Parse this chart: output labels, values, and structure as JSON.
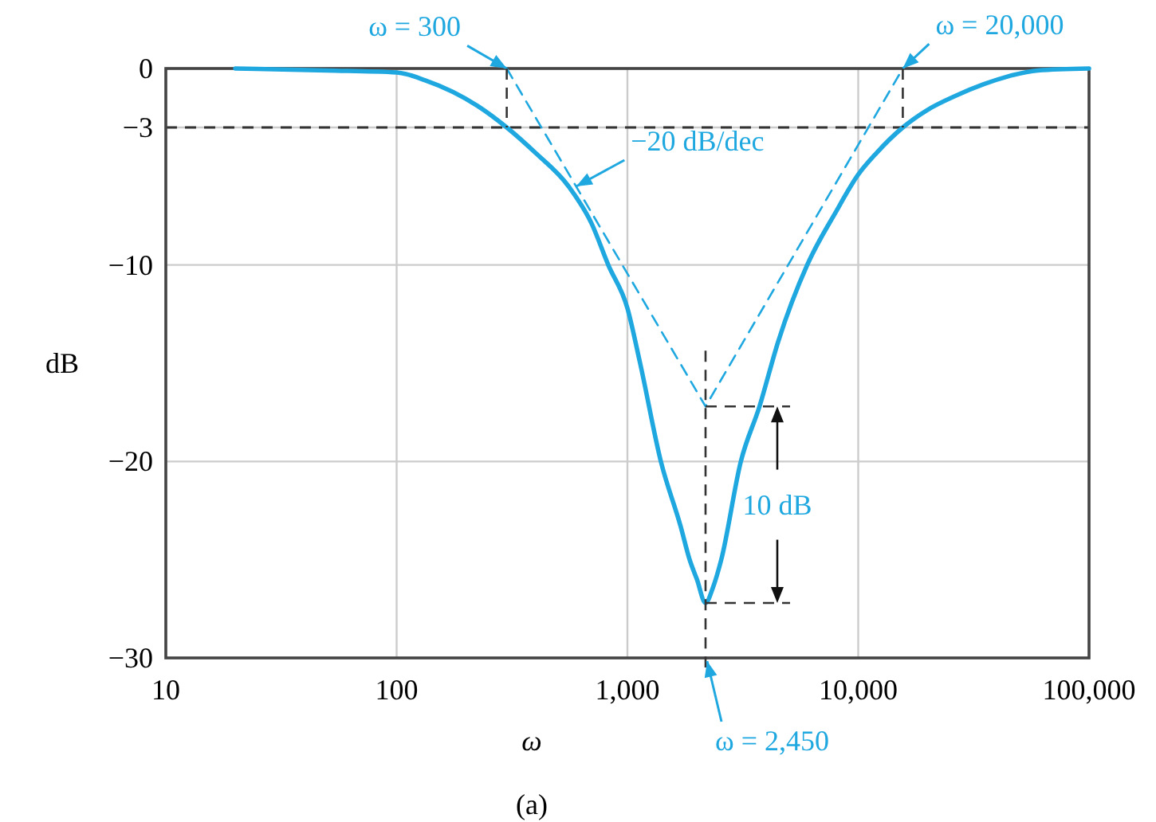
{
  "chart_data": {
    "type": "line",
    "xlabel": "ω",
    "ylabel": "dB",
    "log": "x",
    "grid": true,
    "xlim": [
      10,
      100000
    ],
    "ylim": [
      -30,
      0
    ],
    "xticks": [
      {
        "value": 10,
        "label": "10"
      },
      {
        "value": 100,
        "label": "100"
      },
      {
        "value": 1000,
        "label": "1,000"
      },
      {
        "value": 10000,
        "label": "10,000"
      },
      {
        "value": 100000,
        "label": "100,000"
      }
    ],
    "yticks": [
      0,
      -3,
      -10,
      -20,
      -30
    ],
    "ref_lines": [
      {
        "axis": "y",
        "value": -3,
        "color": "#333333",
        "line_style": "dashed"
      }
    ],
    "series": [
      {
        "color": "#1fa8e0",
        "line_style": "solid",
        "x": [
          20,
          50,
          100,
          133,
          224,
          300,
          400,
          556,
          700,
          826,
          1000,
          1135,
          1396,
          1700,
          1860,
          2000,
          2180,
          2350,
          2550,
          3100,
          3735,
          4500,
          6010,
          8000,
          10000,
          12000,
          15600,
          20000,
          26300,
          35000,
          44600,
          60000,
          100000
        ],
        "values": [
          0,
          -0.1,
          -0.2,
          -0.6,
          -1.9,
          -3,
          -4.3,
          -6,
          -7.9,
          -10,
          -12.2,
          -15,
          -20,
          -23.3,
          -25,
          -26,
          -27.2,
          -26.4,
          -25,
          -20,
          -17.2,
          -13.9,
          -10,
          -7.3,
          -5.4,
          -4.3,
          -3,
          -2.1,
          -1.4,
          -0.8,
          -0.4,
          -0.1,
          0
        ]
      },
      {
        "color": "#1fa8e0",
        "line_style": "dashed",
        "x": [
          300,
          2180,
          15600
        ],
        "values": [
          0,
          -17.2,
          0
        ]
      }
    ],
    "annotations": [
      {
        "text": "ω = 300",
        "x": 300,
        "y": 0
      },
      {
        "text": "−20 dB/dec",
        "x": 600,
        "y": -6
      },
      {
        "text": "ω = 20,000",
        "x": 15600,
        "y": 0
      },
      "ω = 2,450",
      "10 dB",
      "(a)"
    ]
  }
}
